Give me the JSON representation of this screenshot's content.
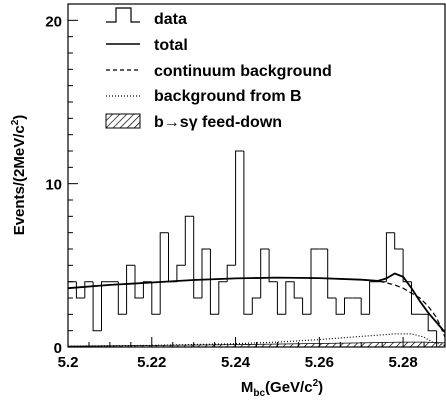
{
  "chart_data": {
    "type": "histogram",
    "xlabel_main": "M",
    "xlabel_sub": "bc",
    "xlabel_unit": "(GeV/c",
    "xlabel_sup": "2",
    "xlabel_close": ")",
    "ylabel_main": "Events/(2MeV/c",
    "ylabel_sup": "2",
    "ylabel_close": ")",
    "xlim": [
      5.2,
      5.29
    ],
    "ylim": [
      0,
      21
    ],
    "xticks": [
      "5.2",
      "5.22",
      "5.24",
      "5.26",
      "5.28"
    ],
    "yticks": [
      "0",
      "10",
      "20"
    ],
    "legend": {
      "data": "data",
      "total": "total",
      "continuum": "continuum background",
      "bfromb": "background from B",
      "feeddown_prefix": "b",
      "feeddown_arrow": "→",
      "feeddown_s": "s",
      "feeddown_gamma": "γ",
      "feeddown_suffix": " feed-down"
    },
    "bin_edges": [
      5.2,
      5.202,
      5.204,
      5.206,
      5.208,
      5.21,
      5.212,
      5.214,
      5.216,
      5.218,
      5.22,
      5.222,
      5.224,
      5.226,
      5.228,
      5.23,
      5.232,
      5.234,
      5.236,
      5.238,
      5.24,
      5.242,
      5.244,
      5.246,
      5.248,
      5.25,
      5.252,
      5.254,
      5.256,
      5.258,
      5.26,
      5.262,
      5.264,
      5.266,
      5.268,
      5.27,
      5.272,
      5.274,
      5.276,
      5.278,
      5.28,
      5.282,
      5.284,
      5.286,
      5.288,
      5.29
    ],
    "data_counts": [
      4,
      3,
      4,
      1,
      4,
      4,
      2,
      5,
      3,
      4,
      2,
      7,
      4,
      5,
      8,
      3,
      6,
      2,
      4,
      5,
      12,
      2,
      3,
      6,
      4,
      2,
      4,
      3,
      2,
      6,
      6,
      3,
      2,
      3,
      3,
      2,
      4,
      4,
      7,
      6,
      4,
      2,
      2,
      1,
      0
    ],
    "total": {
      "x": [
        5.2,
        5.21,
        5.22,
        5.23,
        5.24,
        5.25,
        5.26,
        5.27,
        5.274,
        5.276,
        5.278,
        5.28,
        5.282,
        5.284,
        5.286,
        5.288,
        5.29
      ],
      "y": [
        3.6,
        3.8,
        3.95,
        4.1,
        4.2,
        4.25,
        4.22,
        4.12,
        4.05,
        4.2,
        4.5,
        4.3,
        3.6,
        2.8,
        2.1,
        1.5,
        0.9
      ]
    },
    "continuum": {
      "x": [
        5.2,
        5.21,
        5.22,
        5.23,
        5.24,
        5.25,
        5.26,
        5.27,
        5.274,
        5.278,
        5.28,
        5.282,
        5.284,
        5.286,
        5.288,
        5.29
      ],
      "y": [
        3.6,
        3.8,
        3.95,
        4.1,
        4.2,
        4.25,
        4.22,
        4.12,
        4.05,
        3.8,
        3.6,
        3.3,
        3.0,
        2.5,
        1.8,
        0.6
      ]
    },
    "bfromb": {
      "x": [
        5.2,
        5.22,
        5.24,
        5.25,
        5.26,
        5.27,
        5.278,
        5.282,
        5.285,
        5.287,
        5.29
      ],
      "y": [
        0.05,
        0.1,
        0.2,
        0.3,
        0.45,
        0.65,
        0.8,
        0.8,
        0.6,
        0.3,
        0.1
      ]
    },
    "feeddown": {
      "x": [
        5.2,
        5.24,
        5.27,
        5.28,
        5.285,
        5.29
      ],
      "y": [
        0.05,
        0.15,
        0.25,
        0.3,
        0.3,
        0.25
      ]
    }
  }
}
